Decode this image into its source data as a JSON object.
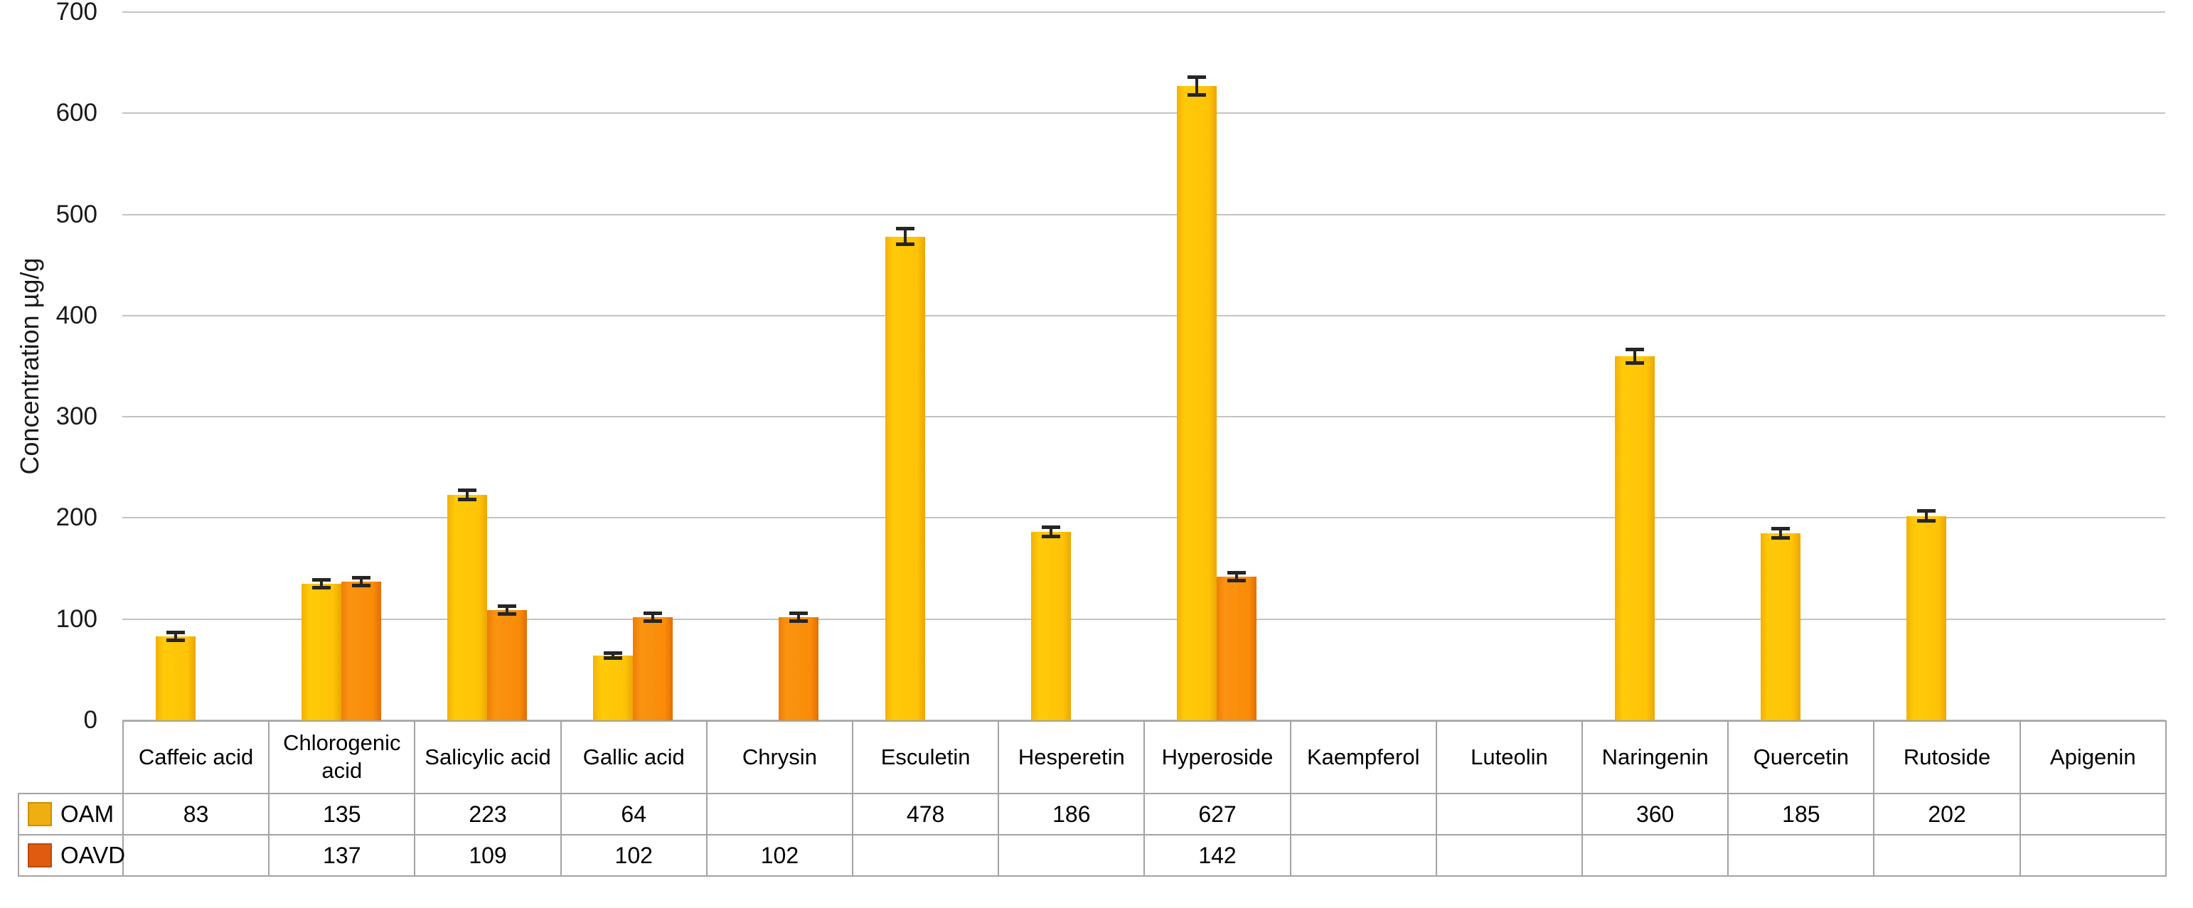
{
  "chart_data": {
    "type": "bar",
    "title": "",
    "ylabel": "Concentration µg/g",
    "xlabel": "",
    "ylim": [
      0,
      700
    ],
    "yticks": [
      0,
      100,
      200,
      300,
      400,
      500,
      600,
      700
    ],
    "grid": true,
    "legend_position": "left-of-data-table",
    "categories": [
      "Caffeic acid",
      "Chlorogenic acid",
      "Salicylic acid",
      "Gallic acid",
      "Chrysin",
      "Esculetin",
      "Hesperetin",
      "Hyperoside",
      "Kaempferol",
      "Luteolin",
      "Naringenin",
      "Quercetin",
      "Rutoside",
      "Apigenin"
    ],
    "series": [
      {
        "name": "OAM",
        "color": "#ffc307",
        "legend_key_color": "#efae12",
        "values": [
          83,
          135,
          223,
          64,
          null,
          478,
          186,
          627,
          null,
          null,
          360,
          185,
          202,
          null
        ],
        "errors": [
          4,
          4,
          5,
          3,
          null,
          8,
          5,
          9,
          null,
          null,
          7,
          5,
          5,
          null
        ]
      },
      {
        "name": "OAVD",
        "color": "#f98c08",
        "legend_key_color": "#e05a10",
        "values": [
          null,
          137,
          109,
          102,
          102,
          null,
          null,
          142,
          null,
          null,
          null,
          null,
          null,
          null
        ],
        "errors": [
          null,
          4,
          4,
          4,
          4,
          null,
          null,
          4,
          null,
          null,
          null,
          null,
          null,
          null
        ]
      }
    ]
  },
  "table": {
    "corner_label": "",
    "headers": [
      "Caffeic acid",
      "Chlorogenic acid",
      "Salicylic acid",
      "Gallic acid",
      "Chrysin",
      "Esculetin",
      "Hesperetin",
      "Hyperoside",
      "Kaempferol",
      "Luteolin",
      "Naringenin",
      "Quercetin",
      "Rutoside",
      "Apigenin"
    ],
    "rows": [
      {
        "label": "OAM",
        "cells": [
          "83",
          "135",
          "223",
          "64",
          "",
          "478",
          "186",
          "627",
          "",
          "",
          "360",
          "185",
          "202",
          ""
        ]
      },
      {
        "label": "OAVD",
        "cells": [
          "",
          "137",
          "109",
          "102",
          "102",
          "",
          "",
          "142",
          "",
          "",
          "",
          "",
          "",
          ""
        ]
      }
    ]
  }
}
